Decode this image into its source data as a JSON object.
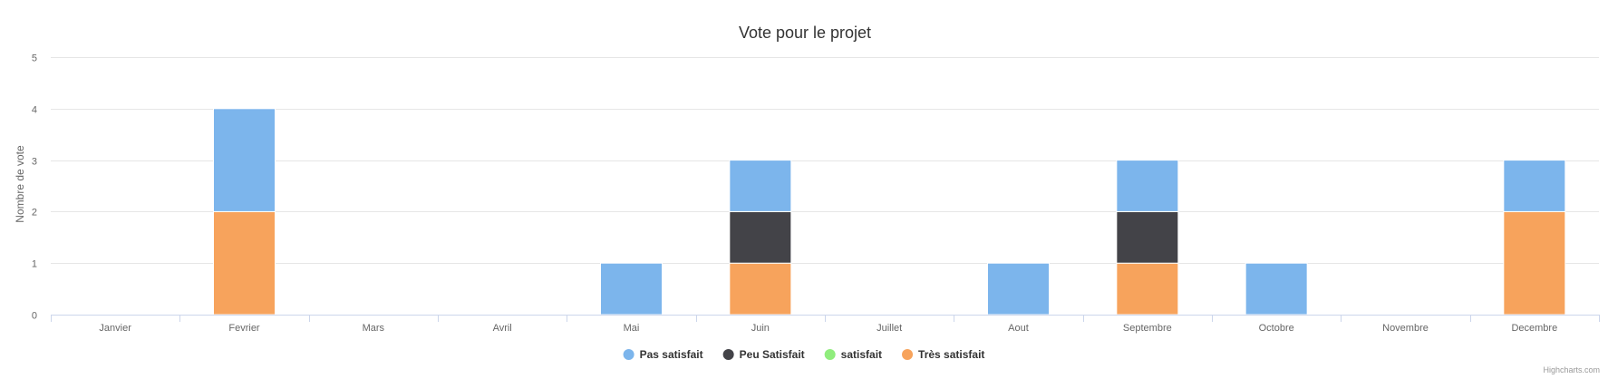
{
  "chart_data": {
    "type": "bar",
    "stacked": true,
    "title": "Vote pour le projet",
    "xlabel": "",
    "ylabel": "Nombre de vote",
    "ylim": [
      0,
      5
    ],
    "yticks": [
      "0",
      "1",
      "2",
      "3",
      "4",
      "5"
    ],
    "categories": [
      "Janvier",
      "Fevrier",
      "Mars",
      "Avril",
      "Mai",
      "Juin",
      "Juillet",
      "Aout",
      "Septembre",
      "Octobre",
      "Novembre",
      "Decembre"
    ],
    "series": [
      {
        "name": "Pas satisfait",
        "color": "#7cb5ec",
        "values": [
          0,
          2,
          0,
          0,
          1,
          1,
          0,
          1,
          1,
          1,
          0,
          1
        ]
      },
      {
        "name": "Peu Satisfait",
        "color": "#434348",
        "values": [
          0,
          0,
          0,
          0,
          0,
          1,
          0,
          0,
          1,
          0,
          0,
          0
        ]
      },
      {
        "name": "satisfait",
        "color": "#90ed7d",
        "values": [
          0,
          0,
          0,
          0,
          0,
          0,
          0,
          0,
          0,
          0,
          0,
          0
        ]
      },
      {
        "name": "Très satisfait",
        "color": "#f7a35c",
        "values": [
          0,
          2,
          0,
          0,
          0,
          1,
          0,
          0,
          1,
          0,
          0,
          2
        ]
      }
    ],
    "grid": true,
    "legend_position": "bottom-center",
    "credits": "Highcharts.com"
  }
}
